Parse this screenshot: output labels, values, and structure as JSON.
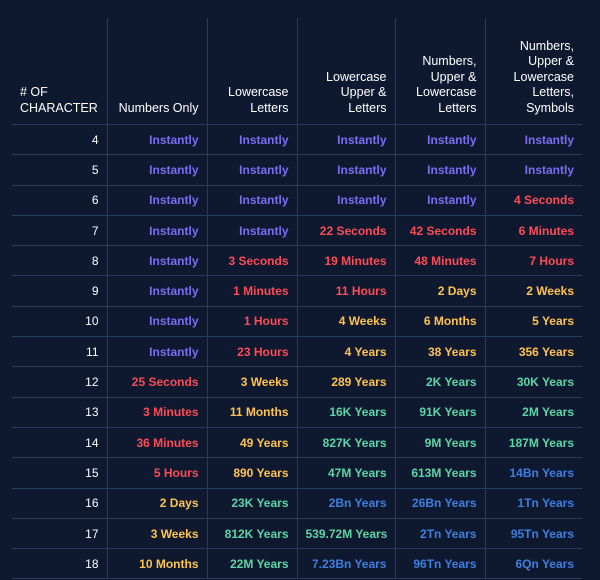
{
  "headers": [
    "# OF CHARACTER",
    "Numbers Only",
    "Lowercase Letters",
    "Lowercase Upper & Letters",
    "Numbers, Upper & Lowercase Letters",
    "Numbers, Upper & Lowercase Letters, Symbols"
  ],
  "colors": {
    "background": "#0e1930",
    "grid": "#2a3a59",
    "purple": "#7b6cf0",
    "red": "#ff4b55",
    "orange": "#ffc34d",
    "green": "#5bd6a6",
    "blue": "#3d7fe0"
  },
  "rows": [
    {
      "chars": "4",
      "cells": [
        {
          "text": "Instantly",
          "color": "purple"
        },
        {
          "text": "Instantly",
          "color": "purple"
        },
        {
          "text": "Instantly",
          "color": "purple"
        },
        {
          "text": "Instantly",
          "color": "purple"
        },
        {
          "text": "Instantly",
          "color": "purple"
        }
      ]
    },
    {
      "chars": "5",
      "cells": [
        {
          "text": "Instantly",
          "color": "purple"
        },
        {
          "text": "Instantly",
          "color": "purple"
        },
        {
          "text": "Instantly",
          "color": "purple"
        },
        {
          "text": "Instantly",
          "color": "purple"
        },
        {
          "text": "Instantly",
          "color": "purple"
        }
      ]
    },
    {
      "chars": "6",
      "cells": [
        {
          "text": "Instantly",
          "color": "purple"
        },
        {
          "text": "Instantly",
          "color": "purple"
        },
        {
          "text": "Instantly",
          "color": "purple"
        },
        {
          "text": "Instantly",
          "color": "purple"
        },
        {
          "text": "4 Seconds",
          "color": "red"
        }
      ]
    },
    {
      "chars": "7",
      "cells": [
        {
          "text": "Instantly",
          "color": "purple"
        },
        {
          "text": "Instantly",
          "color": "purple"
        },
        {
          "text": "22 Seconds",
          "color": "red"
        },
        {
          "text": "42 Seconds",
          "color": "red"
        },
        {
          "text": "6 Minutes",
          "color": "red"
        }
      ]
    },
    {
      "chars": "8",
      "cells": [
        {
          "text": "Instantly",
          "color": "purple"
        },
        {
          "text": "3 Seconds",
          "color": "red"
        },
        {
          "text": "19 Minutes",
          "color": "red"
        },
        {
          "text": "48 Minutes",
          "color": "red"
        },
        {
          "text": "7 Hours",
          "color": "red"
        }
      ]
    },
    {
      "chars": "9",
      "cells": [
        {
          "text": "Instantly",
          "color": "purple"
        },
        {
          "text": "1 Minutes",
          "color": "red"
        },
        {
          "text": "11 Hours",
          "color": "red"
        },
        {
          "text": "2 Days",
          "color": "orange"
        },
        {
          "text": "2 Weeks",
          "color": "orange"
        }
      ]
    },
    {
      "chars": "10",
      "cells": [
        {
          "text": "Instantly",
          "color": "purple"
        },
        {
          "text": "1 Hours",
          "color": "red"
        },
        {
          "text": "4 Weeks",
          "color": "orange"
        },
        {
          "text": "6 Months",
          "color": "orange"
        },
        {
          "text": "5 Years",
          "color": "orange"
        }
      ]
    },
    {
      "chars": "11",
      "cells": [
        {
          "text": "Instantly",
          "color": "purple"
        },
        {
          "text": "23 Hours",
          "color": "red"
        },
        {
          "text": "4 Years",
          "color": "orange"
        },
        {
          "text": "38 Years",
          "color": "orange"
        },
        {
          "text": "356 Years",
          "color": "orange"
        }
      ]
    },
    {
      "chars": "12",
      "cells": [
        {
          "text": "25 Seconds",
          "color": "red"
        },
        {
          "text": "3 Weeks",
          "color": "orange"
        },
        {
          "text": "289 Years",
          "color": "orange"
        },
        {
          "text": "2K Years",
          "color": "green"
        },
        {
          "text": "30K Years",
          "color": "green"
        }
      ]
    },
    {
      "chars": "13",
      "cells": [
        {
          "text": "3 Minutes",
          "color": "red"
        },
        {
          "text": "11 Months",
          "color": "orange"
        },
        {
          "text": "16K Years",
          "color": "green"
        },
        {
          "text": "91K Years",
          "color": "green"
        },
        {
          "text": "2M Years",
          "color": "green"
        }
      ]
    },
    {
      "chars": "14",
      "cells": [
        {
          "text": "36 Minutes",
          "color": "red"
        },
        {
          "text": "49 Years",
          "color": "orange"
        },
        {
          "text": "827K Years",
          "color": "green"
        },
        {
          "text": "9M Years",
          "color": "green"
        },
        {
          "text": "187M Years",
          "color": "green"
        }
      ]
    },
    {
      "chars": "15",
      "cells": [
        {
          "text": "5 Hours",
          "color": "red"
        },
        {
          "text": "890 Years",
          "color": "orange"
        },
        {
          "text": "47M Years",
          "color": "green"
        },
        {
          "text": "613M Years",
          "color": "green"
        },
        {
          "text": "14Bn Years",
          "color": "blue"
        }
      ]
    },
    {
      "chars": "16",
      "cells": [
        {
          "text": "2 Days",
          "color": "orange"
        },
        {
          "text": "23K Years",
          "color": "green"
        },
        {
          "text": "2Bn Years",
          "color": "blue"
        },
        {
          "text": "26Bn Years",
          "color": "blue"
        },
        {
          "text": "1Tn Years",
          "color": "blue"
        }
      ]
    },
    {
      "chars": "17",
      "cells": [
        {
          "text": "3 Weeks",
          "color": "orange"
        },
        {
          "text": "812K Years",
          "color": "green"
        },
        {
          "text": "539.72M Years",
          "color": "green"
        },
        {
          "text": "2Tn Years",
          "color": "blue"
        },
        {
          "text": "95Tn Years",
          "color": "blue"
        }
      ]
    },
    {
      "chars": "18",
      "cells": [
        {
          "text": "10 Months",
          "color": "orange"
        },
        {
          "text": "22M Years",
          "color": "green"
        },
        {
          "text": "7.23Bn Years",
          "color": "blue"
        },
        {
          "text": "96Tn Years",
          "color": "blue"
        },
        {
          "text": "6Qn Years",
          "color": "blue"
        }
      ]
    }
  ]
}
